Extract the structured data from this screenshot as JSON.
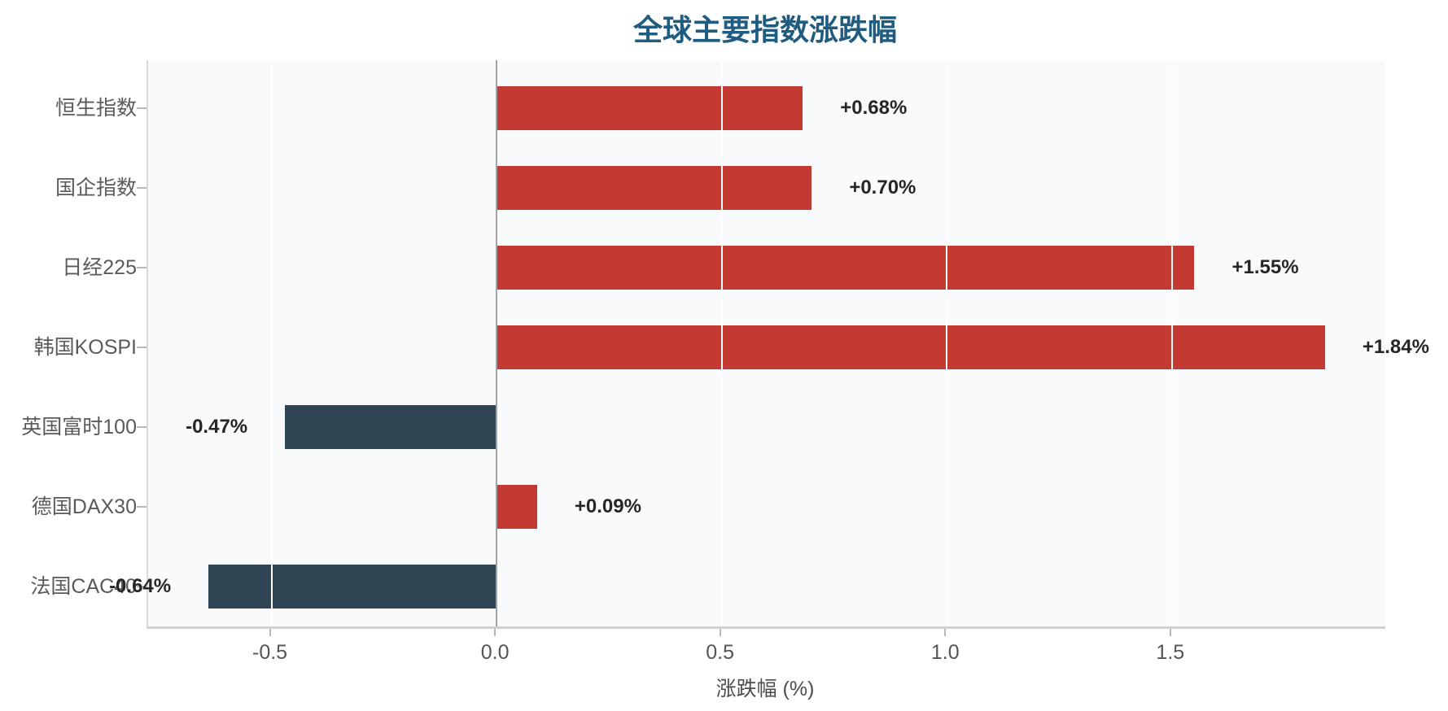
{
  "chart_data": {
    "type": "bar",
    "orientation": "horizontal",
    "title": "全球主要指数涨跌幅",
    "xlabel": "涨跌幅 (%)",
    "ylabel": "",
    "categories": [
      "恒生指数",
      "国企指数",
      "日经225",
      "韩国KOSPI",
      "英国富时100",
      "德国DAX30",
      "法国CAC40"
    ],
    "values": [
      0.68,
      0.7,
      1.55,
      1.84,
      -0.47,
      0.09,
      -0.64
    ],
    "value_labels": [
      "+0.68%",
      "+0.70%",
      "+1.55%",
      "+1.84%",
      "-0.47%",
      "+0.09%",
      "-0.64%"
    ],
    "x_ticks": [
      -0.5,
      0.0,
      0.5,
      1.0,
      1.5
    ],
    "x_tick_labels": [
      "-0.5",
      "0.0",
      "0.5",
      "1.0",
      "1.5"
    ],
    "xlim": [
      -0.774,
      1.974
    ],
    "grid": "white vertical gridlines at x ticks, drawn over bars",
    "zero_line": true,
    "legend": "none",
    "colors": {
      "positive_bar": "#c23a32",
      "negative_bar": "#2f4554",
      "title": "#205c80",
      "value_label": "#262626",
      "axis_label": "#5a5a5a",
      "plot_background": "#f8fafb"
    }
  }
}
